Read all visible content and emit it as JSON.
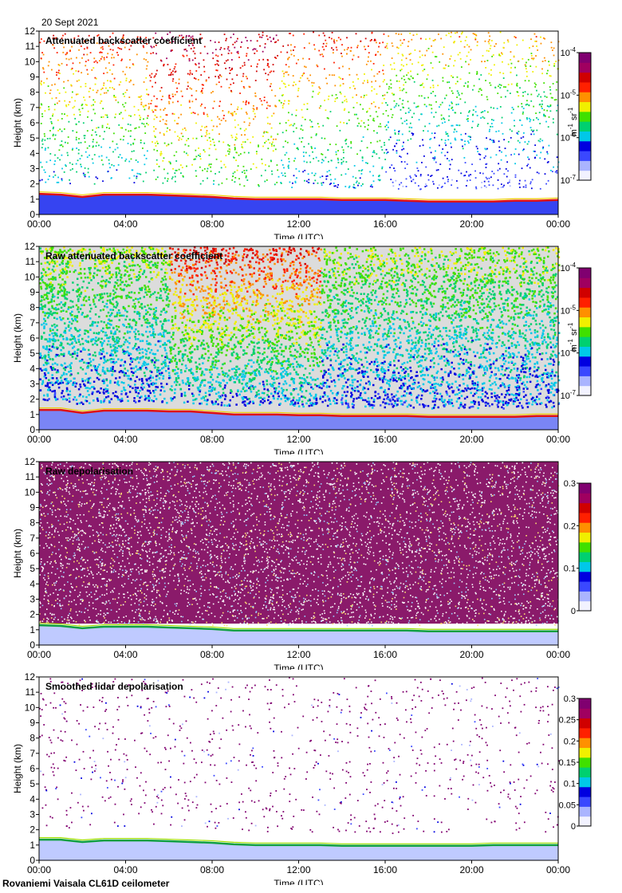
{
  "date": "20 Sept 2021",
  "footer": "Rovaniemi Vaisala CL61D ceilometer",
  "colorscale": [
    "#f2f2ff",
    "#aab4ff",
    "#3a48ff",
    "#0000e0",
    "#00c8e8",
    "#00d070",
    "#40e000",
    "#f0f000",
    "#ff9000",
    "#ff2000",
    "#d00000",
    "#a00060",
    "#800070"
  ],
  "chart_data": [
    {
      "type": "heatmap",
      "title": "Attenuated backscatter coefficient",
      "xlabel": "Time (UTC)",
      "ylabel": "Height (km)",
      "xticks": [
        "00:00",
        "04:00",
        "08:00",
        "12:00",
        "16:00",
        "20:00",
        "00:00"
      ],
      "xlim": [
        0,
        24
      ],
      "ylim": [
        0,
        12
      ],
      "yticks": [
        0,
        1,
        2,
        3,
        4,
        5,
        6,
        7,
        8,
        9,
        10,
        11,
        12
      ],
      "colorbar": {
        "scale": "log",
        "range": [
          1e-07,
          0.0001
        ],
        "ticks": [
          "10",
          "10",
          "10",
          "10"
        ],
        "tick_exponents": [
          "-7",
          "-6",
          "-5",
          "-4"
        ],
        "unit_base": [
          "m",
          "sr"
        ],
        "unit_exponents": [
          "-1",
          "-1"
        ]
      },
      "cloud_base_km": [
        1.35,
        1.3,
        1.15,
        1.3,
        1.3,
        1.3,
        1.25,
        1.2,
        1.15,
        1.05,
        1.0,
        1.0,
        1.0,
        1.0,
        0.95,
        0.95,
        0.95,
        0.9,
        0.85,
        0.85,
        0.85,
        0.85,
        0.9,
        0.9,
        0.95
      ]
    },
    {
      "type": "heatmap",
      "title": "Raw attenuated backscatter coefficient",
      "xlabel": "Time (UTC)",
      "ylabel": "Height (km)",
      "xticks": [
        "00:00",
        "04:00",
        "08:00",
        "12:00",
        "16:00",
        "20:00",
        "00:00"
      ],
      "xlim": [
        0,
        24
      ],
      "ylim": [
        0,
        12
      ],
      "yticks": [
        0,
        1,
        2,
        3,
        4,
        5,
        6,
        7,
        8,
        9,
        10,
        11,
        12
      ],
      "colorbar": {
        "scale": "log",
        "range": [
          1e-07,
          0.0001
        ],
        "ticks": [
          "10",
          "10",
          "10",
          "10"
        ],
        "tick_exponents": [
          "-7",
          "-6",
          "-5",
          "-4"
        ],
        "unit_base": [
          "m",
          "sr"
        ],
        "unit_exponents": [
          "-1",
          "-1"
        ]
      },
      "cloud_base_km": [
        1.3,
        1.3,
        1.1,
        1.25,
        1.25,
        1.25,
        1.2,
        1.2,
        1.1,
        1.0,
        1.0,
        1.0,
        0.95,
        0.95,
        0.9,
        0.9,
        0.9,
        0.9,
        0.85,
        0.85,
        0.85,
        0.85,
        0.85,
        0.9,
        0.9
      ]
    },
    {
      "type": "heatmap",
      "title": "Raw depolarisation",
      "xlabel": "Time (UTC)",
      "ylabel": "Height (km)",
      "xticks": [
        "00:00",
        "04:00",
        "08:00",
        "12:00",
        "16:00",
        "20:00",
        "00:00"
      ],
      "xlim": [
        0,
        24
      ],
      "ylim": [
        0,
        12
      ],
      "yticks": [
        0,
        1,
        2,
        3,
        4,
        5,
        6,
        7,
        8,
        9,
        10,
        11,
        12
      ],
      "colorbar": {
        "scale": "linear",
        "range": [
          0,
          0.3
        ],
        "ticks": [
          "0",
          "0.1",
          "0.2",
          "0.3"
        ]
      },
      "cloud_base_km": [
        1.3,
        1.25,
        1.1,
        1.2,
        1.2,
        1.2,
        1.15,
        1.1,
        1.05,
        0.95,
        0.95,
        0.95,
        0.95,
        0.95,
        0.95,
        0.95,
        0.95,
        0.95,
        0.9,
        0.9,
        0.9,
        0.9,
        0.9,
        0.9,
        0.9
      ]
    },
    {
      "type": "heatmap",
      "title": "Smoothed lidar depolarisation",
      "xlabel": "Time (UTC)",
      "ylabel": "Height (km)",
      "xticks": [
        "00:00",
        "04:00",
        "08:00",
        "12:00",
        "16:00",
        "20:00",
        "00:00"
      ],
      "xlim": [
        0,
        24
      ],
      "ylim": [
        0,
        12
      ],
      "yticks": [
        0,
        1,
        2,
        3,
        4,
        5,
        6,
        7,
        8,
        9,
        10,
        11,
        12
      ],
      "colorbar": {
        "scale": "linear",
        "range": [
          0,
          0.3
        ],
        "ticks": [
          "0",
          "0.05",
          "0.1",
          "0.15",
          "0.2",
          "0.25",
          "0.3"
        ]
      },
      "cloud_base_km": [
        1.35,
        1.35,
        1.2,
        1.3,
        1.3,
        1.3,
        1.25,
        1.2,
        1.15,
        1.05,
        1.0,
        1.0,
        1.0,
        1.0,
        0.95,
        0.95,
        0.95,
        0.95,
        0.95,
        0.95,
        0.95,
        1.0,
        1.0,
        1.0,
        1.0
      ]
    }
  ]
}
